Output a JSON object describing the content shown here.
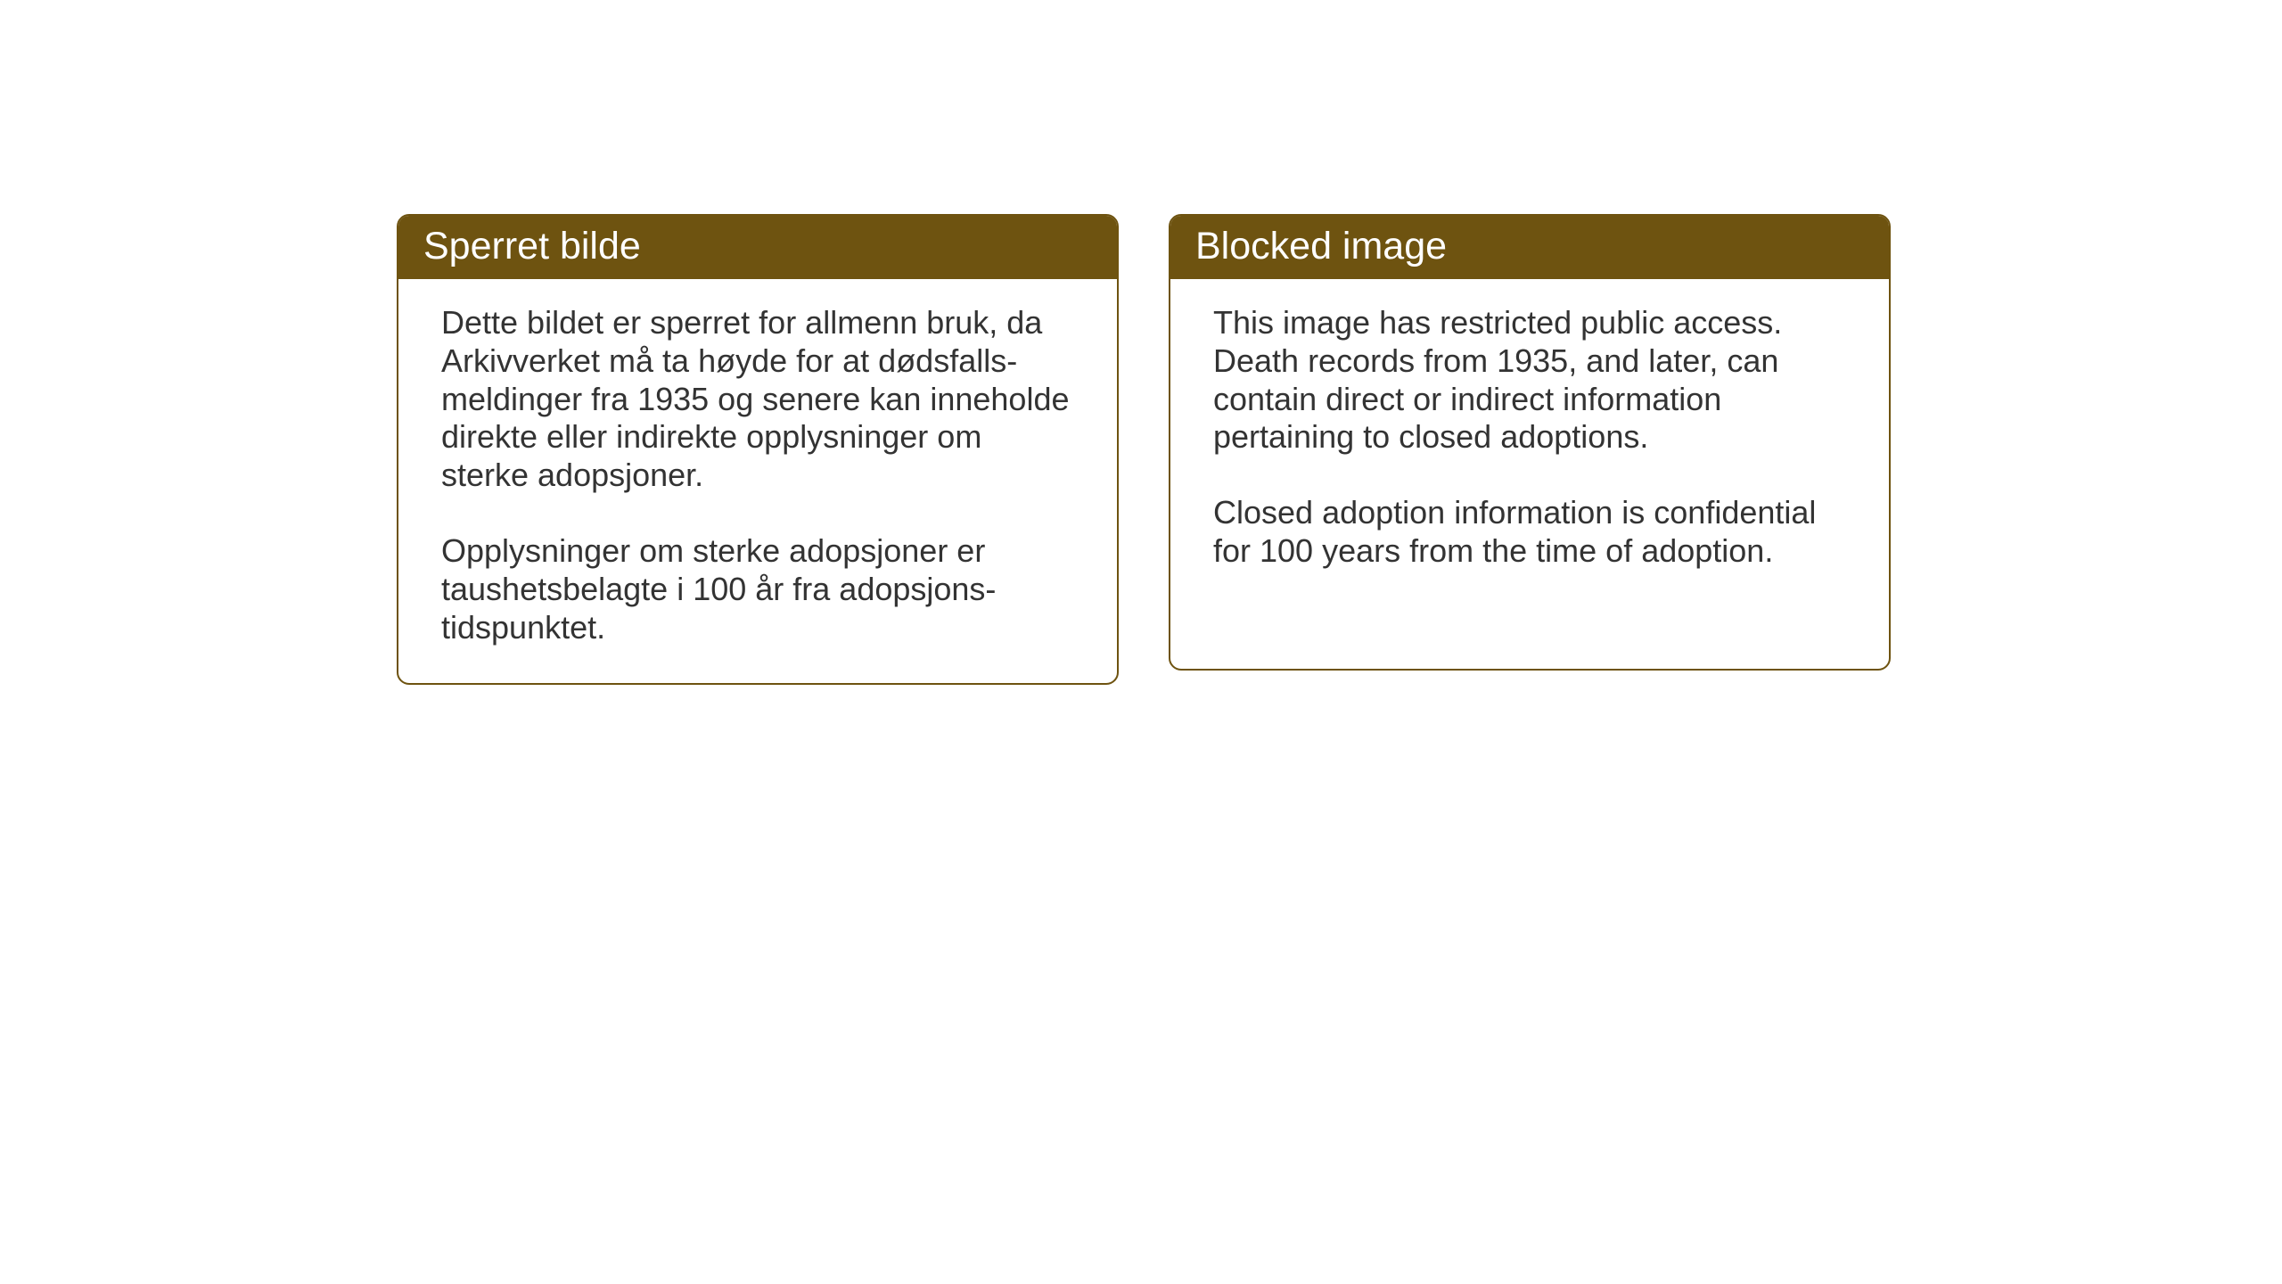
{
  "cards": {
    "norwegian": {
      "title": "Sperret bilde",
      "paragraph1": "Dette bildet er sperret for allmenn bruk, da Arkivverket må ta høyde for at dødsfalls-meldinger fra 1935 og senere kan inneholde direkte eller indirekte opplysninger om sterke adopsjoner.",
      "paragraph2": "Opplysninger om sterke adopsjoner er taushetsbelagte i 100 år fra adopsjons-tidspunktet."
    },
    "english": {
      "title": "Blocked image",
      "paragraph1": "This image has restricted public access. Death records from 1935, and later, can contain direct or indirect information pertaining to closed adoptions.",
      "paragraph2": "Closed adoption information is confidential for 100 years from the time of adoption."
    }
  },
  "styling": {
    "header_bg_color": "#6e5310",
    "header_text_color": "#ffffff",
    "border_color": "#6e5310",
    "body_text_color": "#333333",
    "page_bg_color": "#ffffff",
    "border_radius": 14,
    "title_fontsize": 43,
    "body_fontsize": 36
  }
}
